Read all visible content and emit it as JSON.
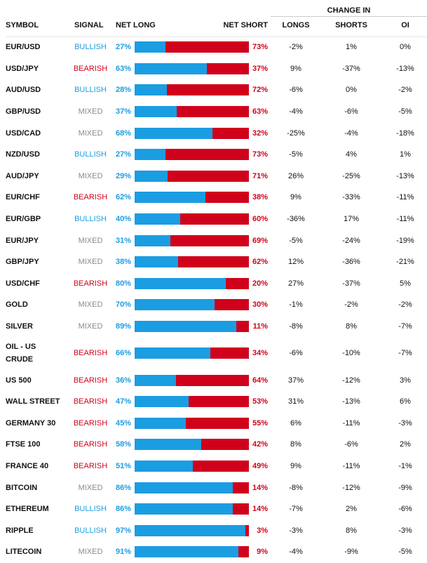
{
  "header": {
    "change_in": "CHANGE IN",
    "symbol": "SYMBOL",
    "signal": "SIGNAL",
    "net_long": "NET LONG",
    "net_short": "NET SHORT",
    "longs": "LONGS",
    "shorts": "SHORTS",
    "oi": "OI"
  },
  "colors": {
    "long": "#1b9de2",
    "short": "#d0021b",
    "bullish": "#1b9de2",
    "bearish": "#d0021b",
    "mixed": "#8a8a8a"
  },
  "rows": [
    {
      "symbol": "EUR/USD",
      "signal": "BULLISH",
      "net_long": 27,
      "net_short": 73,
      "longs": "-2%",
      "shorts": "1%",
      "oi": "0%"
    },
    {
      "symbol": "USD/JPY",
      "signal": "BEARISH",
      "net_long": 63,
      "net_short": 37,
      "longs": "9%",
      "shorts": "-37%",
      "oi": "-13%"
    },
    {
      "symbol": "AUD/USD",
      "signal": "BULLISH",
      "net_long": 28,
      "net_short": 72,
      "longs": "-6%",
      "shorts": "0%",
      "oi": "-2%"
    },
    {
      "symbol": "GBP/USD",
      "signal": "MIXED",
      "net_long": 37,
      "net_short": 63,
      "longs": "-4%",
      "shorts": "-6%",
      "oi": "-5%"
    },
    {
      "symbol": "USD/CAD",
      "signal": "MIXED",
      "net_long": 68,
      "net_short": 32,
      "longs": "-25%",
      "shorts": "-4%",
      "oi": "-18%"
    },
    {
      "symbol": "NZD/USD",
      "signal": "BULLISH",
      "net_long": 27,
      "net_short": 73,
      "longs": "-5%",
      "shorts": "4%",
      "oi": "1%"
    },
    {
      "symbol": "AUD/JPY",
      "signal": "MIXED",
      "net_long": 29,
      "net_short": 71,
      "longs": "26%",
      "shorts": "-25%",
      "oi": "-13%"
    },
    {
      "symbol": "EUR/CHF",
      "signal": "BEARISH",
      "net_long": 62,
      "net_short": 38,
      "longs": "9%",
      "shorts": "-33%",
      "oi": "-11%"
    },
    {
      "symbol": "EUR/GBP",
      "signal": "BULLISH",
      "net_long": 40,
      "net_short": 60,
      "longs": "-36%",
      "shorts": "17%",
      "oi": "-11%"
    },
    {
      "symbol": "EUR/JPY",
      "signal": "MIXED",
      "net_long": 31,
      "net_short": 69,
      "longs": "-5%",
      "shorts": "-24%",
      "oi": "-19%"
    },
    {
      "symbol": "GBP/JPY",
      "signal": "MIXED",
      "net_long": 38,
      "net_short": 62,
      "longs": "12%",
      "shorts": "-36%",
      "oi": "-21%"
    },
    {
      "symbol": "USD/CHF",
      "signal": "BEARISH",
      "net_long": 80,
      "net_short": 20,
      "longs": "27%",
      "shorts": "-37%",
      "oi": "5%"
    },
    {
      "symbol": "GOLD",
      "signal": "MIXED",
      "net_long": 70,
      "net_short": 30,
      "longs": "-1%",
      "shorts": "-2%",
      "oi": "-2%"
    },
    {
      "symbol": "SILVER",
      "signal": "MIXED",
      "net_long": 89,
      "net_short": 11,
      "longs": "-8%",
      "shorts": "8%",
      "oi": "-7%"
    },
    {
      "symbol": "OIL - US CRUDE",
      "signal": "BEARISH",
      "net_long": 66,
      "net_short": 34,
      "longs": "-6%",
      "shorts": "-10%",
      "oi": "-7%"
    },
    {
      "symbol": "US 500",
      "signal": "BEARISH",
      "net_long": 36,
      "net_short": 64,
      "longs": "37%",
      "shorts": "-12%",
      "oi": "3%"
    },
    {
      "symbol": "WALL STREET",
      "signal": "BEARISH",
      "net_long": 47,
      "net_short": 53,
      "longs": "31%",
      "shorts": "-13%",
      "oi": "6%"
    },
    {
      "symbol": "GERMANY 30",
      "signal": "BEARISH",
      "net_long": 45,
      "net_short": 55,
      "longs": "6%",
      "shorts": "-11%",
      "oi": "-3%"
    },
    {
      "symbol": "FTSE 100",
      "signal": "BEARISH",
      "net_long": 58,
      "net_short": 42,
      "longs": "8%",
      "shorts": "-6%",
      "oi": "2%"
    },
    {
      "symbol": "FRANCE 40",
      "signal": "BEARISH",
      "net_long": 51,
      "net_short": 49,
      "longs": "9%",
      "shorts": "-11%",
      "oi": "-1%"
    },
    {
      "symbol": "BITCOIN",
      "signal": "MIXED",
      "net_long": 86,
      "net_short": 14,
      "longs": "-8%",
      "shorts": "-12%",
      "oi": "-9%"
    },
    {
      "symbol": "ETHEREUM",
      "signal": "BULLISH",
      "net_long": 86,
      "net_short": 14,
      "longs": "-7%",
      "shorts": "2%",
      "oi": "-6%"
    },
    {
      "symbol": "RIPPLE",
      "signal": "BULLISH",
      "net_long": 97,
      "net_short": 3,
      "longs": "-3%",
      "shorts": "8%",
      "oi": "-3%"
    },
    {
      "symbol": "LITECOIN",
      "signal": "MIXED",
      "net_long": 91,
      "net_short": 9,
      "longs": "-4%",
      "shorts": "-9%",
      "oi": "-5%"
    }
  ]
}
